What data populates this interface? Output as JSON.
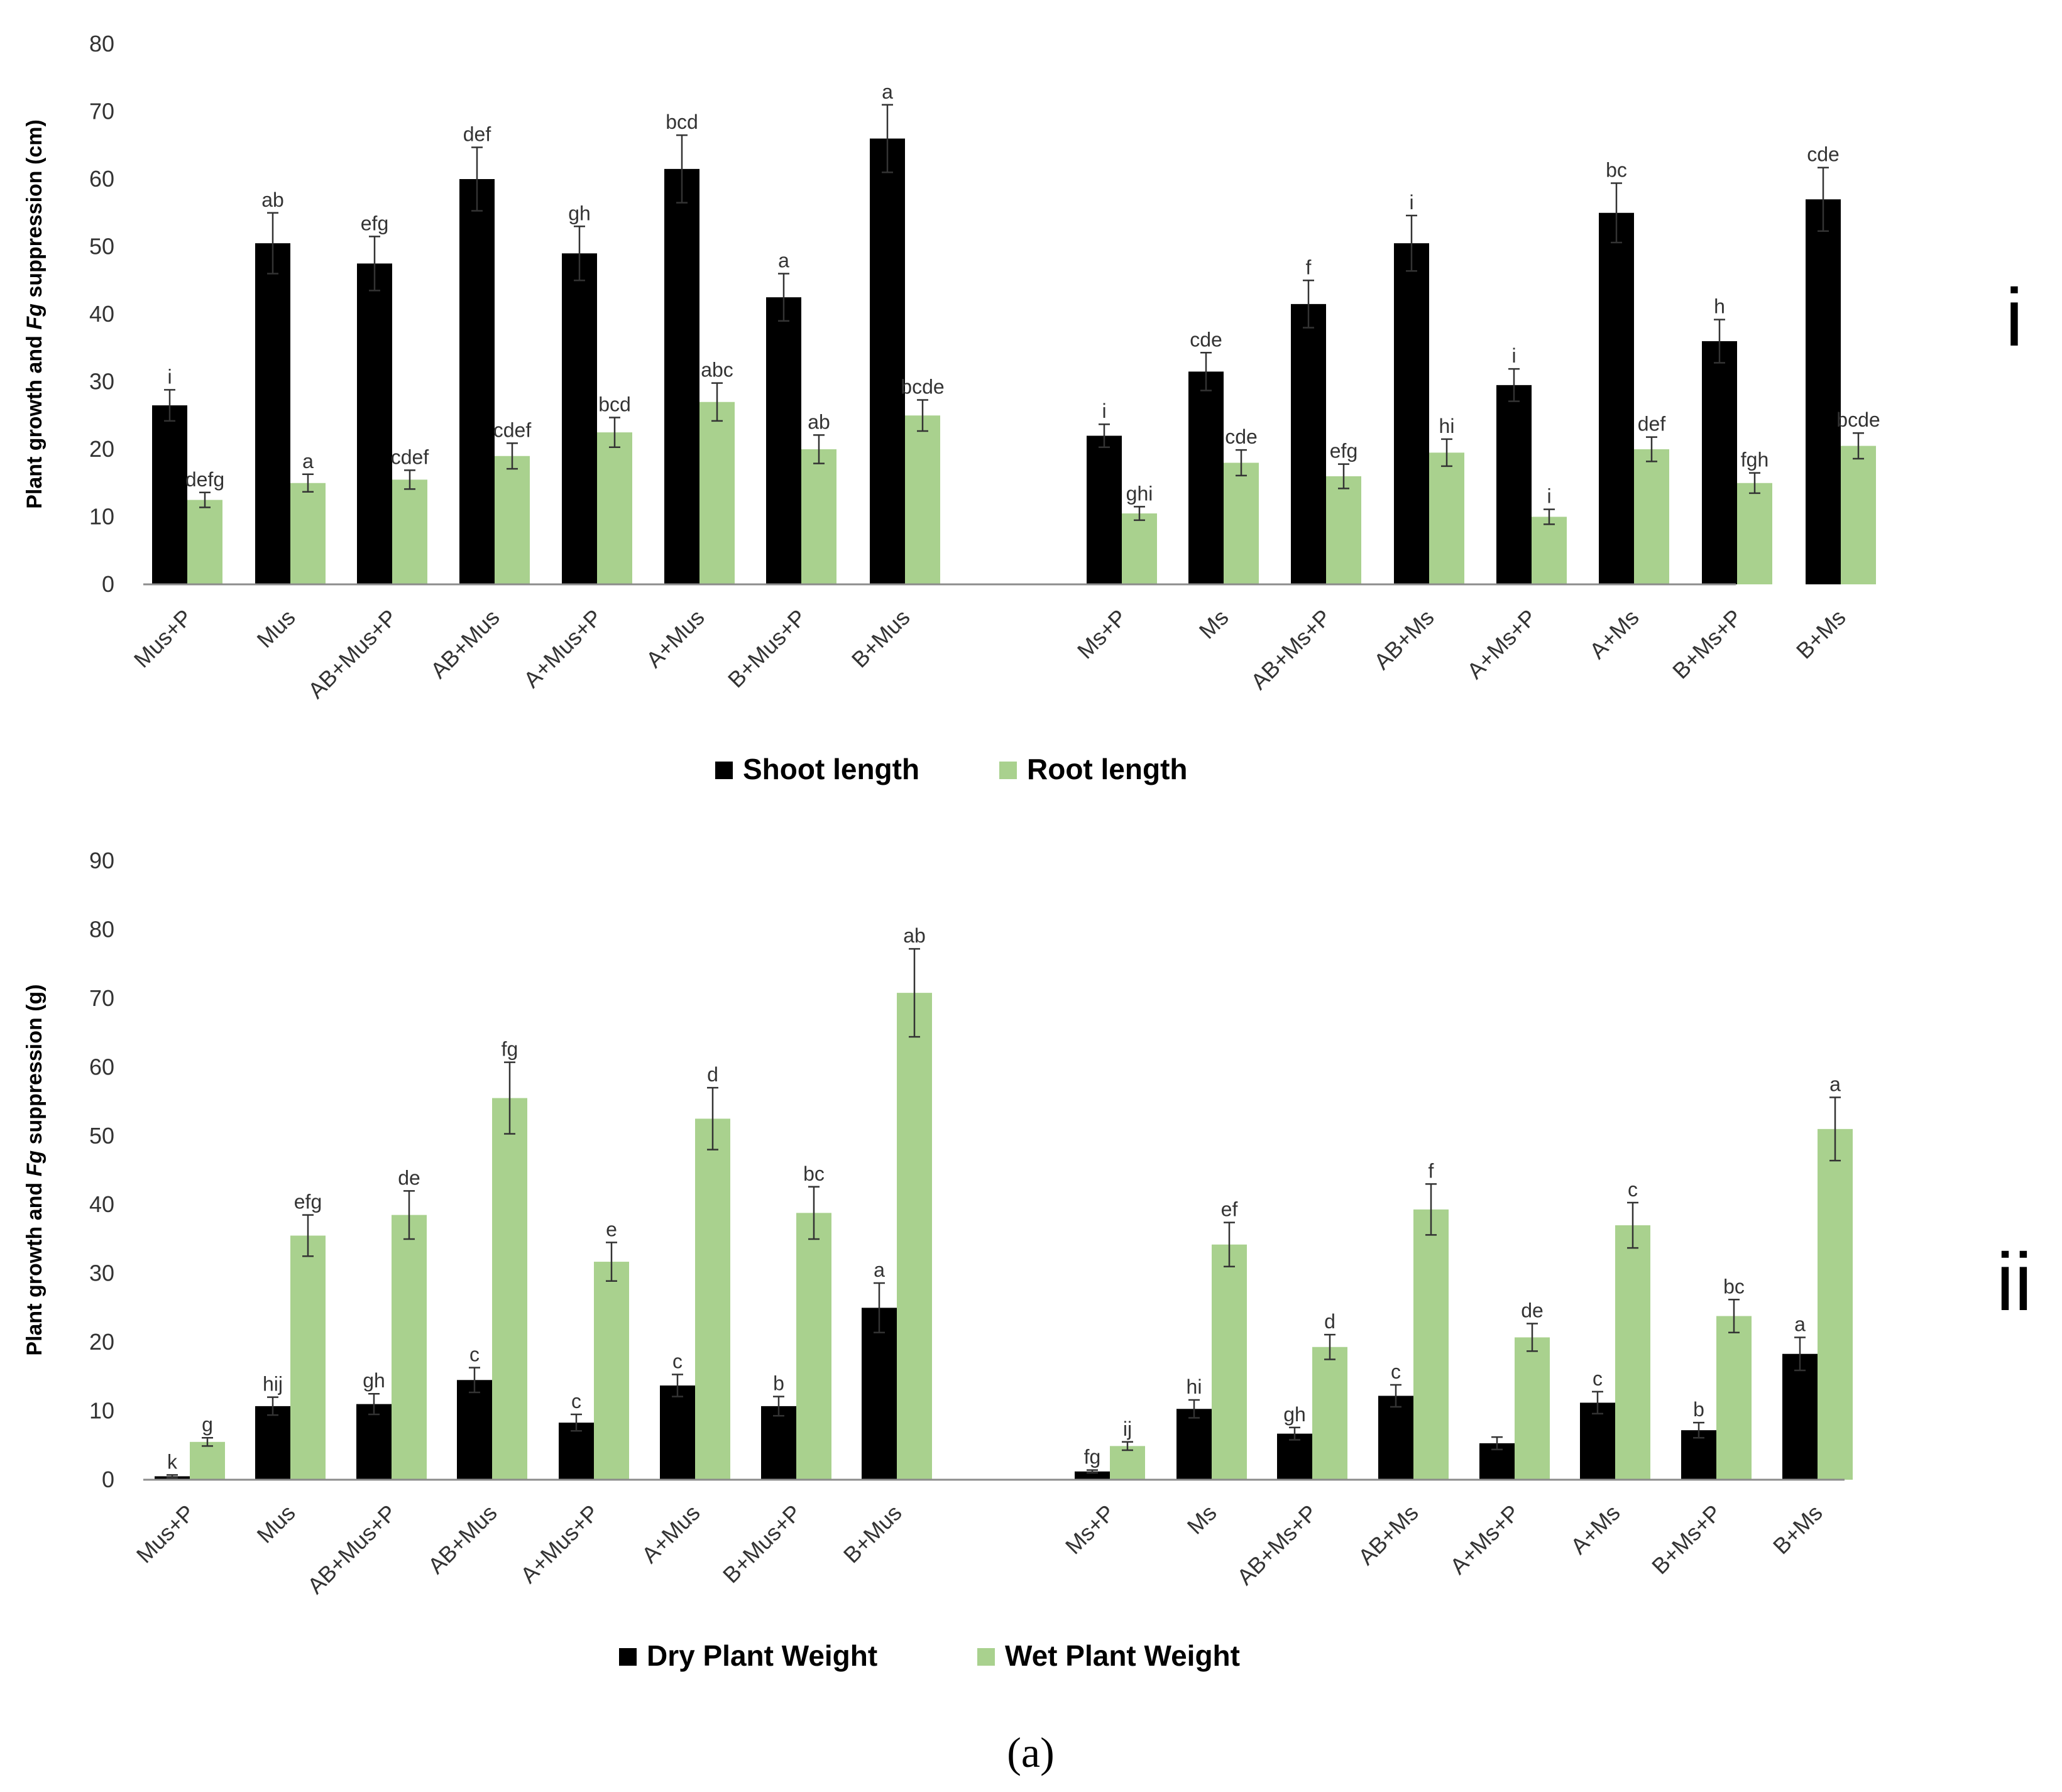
{
  "chart_data": [
    {
      "type": "bar",
      "panel_label": "i",
      "ylabel": "Plant growth and Fg suppression (cm)",
      "ylabel_parts": [
        "Plant growth and ",
        "Fg",
        " suppression (cm)"
      ],
      "ylim": [
        0,
        80
      ],
      "yticks": [
        0,
        10,
        20,
        30,
        40,
        50,
        60,
        70,
        80
      ],
      "categories": [
        "Mus+P",
        "Mus",
        "AB+Mus+P",
        "AB+Mus",
        "A+Mus+P",
        "A+Mus",
        "B+Mus+P",
        "B+Mus",
        "Ms+P",
        "Ms",
        "AB+Ms+P",
        "AB+Ms",
        "A+Ms+P",
        "A+Ms",
        "B+Ms+P",
        "B+Ms"
      ],
      "series": [
        {
          "name": "Shoot length",
          "color": "#000000",
          "values": [
            26.5,
            50.5,
            47.5,
            60,
            49,
            61.5,
            42.5,
            66,
            22,
            31.5,
            41.5,
            50.5,
            29.5,
            55,
            36,
            57
          ],
          "errors": [
            2.3,
            4.5,
            4.0,
            4.7,
            4.0,
            5.0,
            3.5,
            5.0,
            1.7,
            2.8,
            3.5,
            4.1,
            2.4,
            4.4,
            3.2,
            4.7
          ],
          "letters": [
            "i",
            "ab",
            "efg",
            "def",
            "gh",
            "bcd",
            "a",
            "a",
            "i",
            "cde",
            "f",
            "i",
            "i",
            "bc",
            "h",
            "cde"
          ]
        },
        {
          "name": "Root length",
          "color": "#a9d18e",
          "values": [
            12.5,
            15,
            15.5,
            19,
            22.5,
            27,
            20,
            25,
            10.5,
            18,
            16,
            19.5,
            10,
            20,
            15,
            20.5
          ],
          "errors": [
            1.1,
            1.3,
            1.4,
            1.9,
            2.2,
            2.8,
            2.1,
            2.3,
            1.0,
            1.9,
            1.8,
            2.0,
            1.1,
            1.8,
            1.5,
            1.9
          ],
          "letters": [
            "defg",
            "a",
            "cdef",
            "cdef",
            "bcd",
            "abc",
            "ab",
            "bcde",
            "ghi",
            "cde",
            "efg",
            "hi",
            "i",
            "def",
            "fgh",
            "bcde"
          ]
        }
      ]
    },
    {
      "type": "bar",
      "panel_label": "ii",
      "ylabel": "Plant growth and Fg suppression (g)",
      "ylabel_parts": [
        "Plant growth and ",
        "Fg",
        " suppression (g)"
      ],
      "ylim": [
        0,
        90
      ],
      "yticks": [
        0,
        10,
        20,
        30,
        40,
        50,
        60,
        70,
        80,
        90
      ],
      "categories": [
        "Mus+P",
        "Mus",
        "AB+Mus+P",
        "AB+Mus",
        "A+Mus+P",
        "A+Mus",
        "B+Mus+P",
        "B+Mus",
        "Ms+P",
        "Ms",
        "AB+Ms+P",
        "AB+Ms",
        "A+Ms+P",
        "A+Ms",
        "B+Ms+P",
        "B+Ms"
      ],
      "series": [
        {
          "name": "Dry Plant Weight",
          "color": "#000000",
          "values": [
            0.5,
            10.7,
            11,
            14.5,
            8.3,
            13.7,
            10.7,
            25,
            1.2,
            10.3,
            6.7,
            12.2,
            5.3,
            11.2,
            7.2,
            18.3
          ],
          "errors": [
            0.2,
            1.3,
            1.5,
            1.8,
            1.2,
            1.6,
            1.4,
            3.6,
            0.2,
            1.3,
            0.9,
            1.6,
            0.9,
            1.6,
            1.1,
            2.4
          ],
          "letters": [
            "k",
            "hij",
            "gh",
            "c",
            "c",
            "c",
            "b",
            "a",
            "fg",
            "hi",
            "gh",
            "c",
            "",
            "c",
            "b",
            "a"
          ]
        },
        {
          "name": "Wet Plant Weight",
          "color": "#a9d18e",
          "values": [
            5.5,
            35.5,
            38.5,
            55.5,
            31.7,
            52.5,
            38.8,
            70.8,
            4.9,
            34.2,
            19.3,
            39.3,
            20.7,
            37,
            23.8,
            51
          ],
          "errors": [
            0.6,
            3.0,
            3.5,
            5.2,
            2.8,
            4.5,
            3.8,
            6.4,
            0.6,
            3.2,
            1.8,
            3.7,
            2.0,
            3.3,
            2.4,
            4.6
          ],
          "letters": [
            "g",
            "efg",
            "de",
            "fg",
            "e",
            "d",
            "bc",
            "ab",
            "ij",
            "ef",
            "d",
            "f",
            "de",
            "c",
            "bc",
            "a"
          ]
        }
      ]
    }
  ],
  "caption": "(a)"
}
